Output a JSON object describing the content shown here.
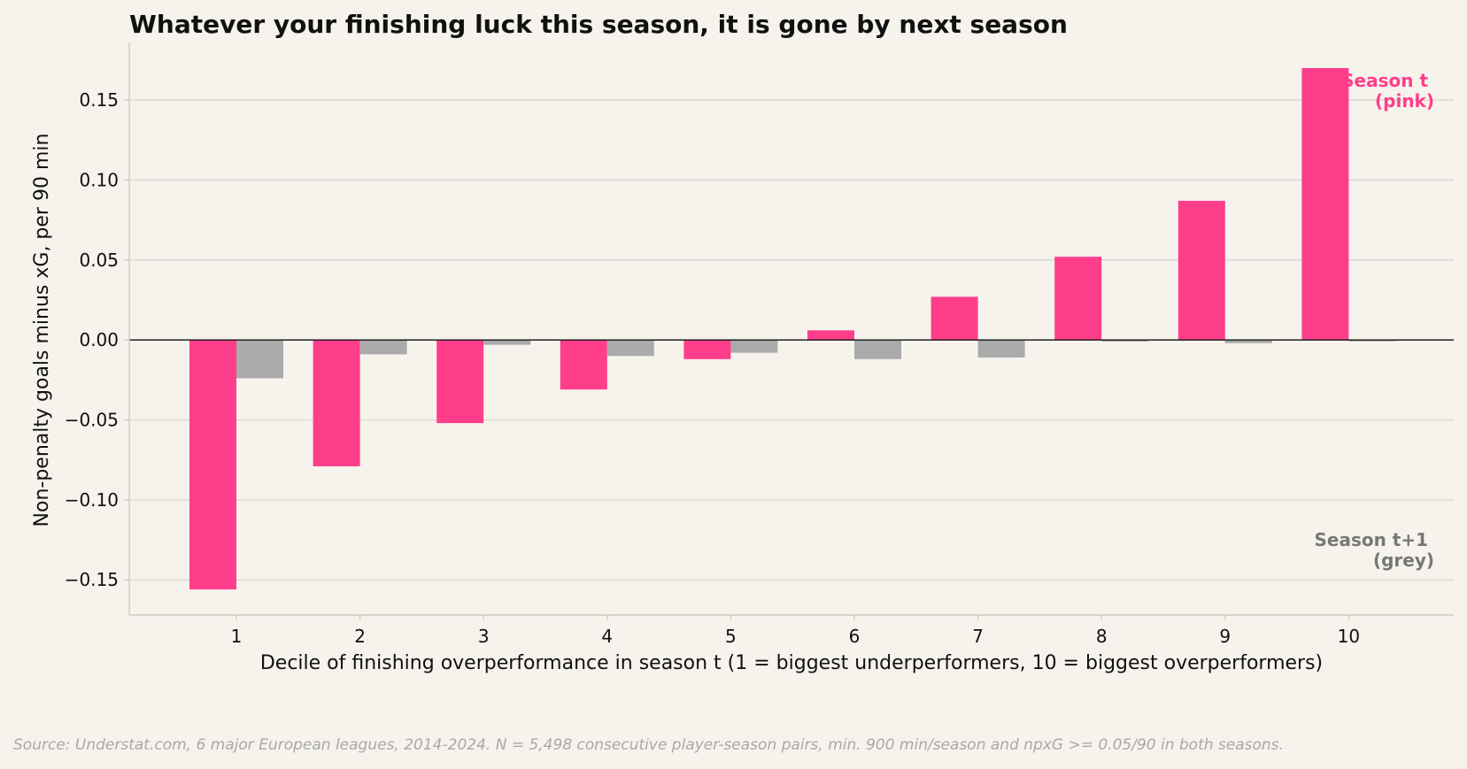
{
  "chart_data": {
    "type": "bar",
    "title": "Whatever your finishing luck this season, it is gone by next season",
    "xlabel": "Decile of finishing overperformance in season t (1 = biggest underperformers, 10 = biggest overperformers)",
    "ylabel": "Non-penalty goals minus xG, per 90 min",
    "categories": [
      "1",
      "2",
      "3",
      "4",
      "5",
      "6",
      "7",
      "8",
      "9",
      "10"
    ],
    "series": [
      {
        "name": "Season t",
        "legend_text": [
          "Season t",
          "(pink)"
        ],
        "color": "#ff3e8b",
        "values": [
          -0.156,
          -0.079,
          -0.052,
          -0.031,
          -0.012,
          0.006,
          0.027,
          0.052,
          0.087,
          0.17
        ]
      },
      {
        "name": "Season t+1",
        "legend_text": [
          "Season t+1",
          "(grey)"
        ],
        "color": "#aaaaaa",
        "values": [
          -0.024,
          -0.009,
          -0.003,
          -0.01,
          -0.008,
          -0.012,
          -0.011,
          -0.001,
          -0.002,
          -0.0005
        ]
      }
    ],
    "yticks": [
      0.15,
      0.1,
      0.05,
      0.0,
      -0.05,
      -0.1,
      -0.15
    ],
    "ytick_labels": [
      "0.15",
      "0.10",
      "0.05",
      "0.00",
      "−0.05",
      "−0.10",
      "−0.15"
    ],
    "ylim": [
      -0.172,
      0.186
    ],
    "grid": "horizontal",
    "legend_placement": "right, inline text"
  },
  "source_note": "Source: Understat.com, 6 major European leagues, 2014-2024. N = 5,498 consecutive player-season pairs, min. 900 min/season and npxG >= 0.05/90 in both seasons."
}
